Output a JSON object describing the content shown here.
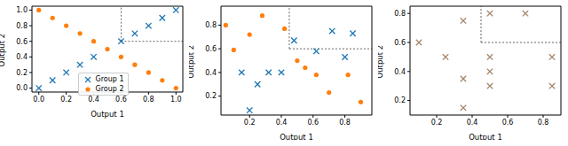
{
  "chart_data": [
    {
      "type": "scatter",
      "xlabel": "Output 1",
      "ylabel": "Output 2",
      "xlim": [
        -0.05,
        1.05
      ],
      "ylim": [
        -0.05,
        1.05
      ],
      "xticks": [
        {
          "value": 0,
          "label": "0.0"
        },
        0.2,
        0.4,
        0.6,
        0.8,
        {
          "value": 1,
          "label": "1.0"
        }
      ],
      "yticks": [
        {
          "value": 0,
          "label": "0.0"
        },
        0.2,
        0.4,
        0.6,
        0.8,
        {
          "value": 1,
          "label": "1.0"
        }
      ],
      "threshold": {
        "x": 0.6,
        "y": 0.6
      },
      "legend": "lower center",
      "series": [
        {
          "name": "Group 1",
          "color": "#1f77b4",
          "marker": "x",
          "x": [
            0,
            0.1,
            0.2,
            0.3,
            0.4,
            0.6,
            0.7,
            0.8,
            0.9,
            1.0
          ],
          "y": [
            0,
            0.1,
            0.2,
            0.3,
            0.4,
            0.6,
            0.7,
            0.8,
            0.9,
            1.0
          ]
        },
        {
          "name": "Group 2",
          "color": "#ff7f0e",
          "marker": "o",
          "x": [
            0,
            0.1,
            0.2,
            0.3,
            0.4,
            0.5,
            0.6,
            0.7,
            0.8,
            0.9,
            1.0
          ],
          "y": [
            1.0,
            0.9,
            0.8,
            0.7,
            0.6,
            0.5,
            0.4,
            0.3,
            0.2,
            0.1,
            0
          ]
        }
      ]
    },
    {
      "type": "scatter",
      "xlabel": "Output 1",
      "ylabel": "Output 2",
      "xlim": [
        0.02,
        0.97
      ],
      "ylim": [
        0.04,
        0.96
      ],
      "xticks": [
        0.2,
        0.4,
        0.6,
        0.8
      ],
      "yticks": [
        0.2,
        0.4,
        0.6,
        0.8
      ],
      "threshold": {
        "x": 0.45,
        "y": 0.6
      },
      "series": [
        {
          "name": "Group 1",
          "color": "#1f77b4",
          "marker": "x",
          "x": [
            0.15,
            0.2,
            0.25,
            0.32,
            0.4,
            0.48,
            0.62,
            0.72,
            0.8,
            0.85
          ],
          "y": [
            0.4,
            0.08,
            0.3,
            0.4,
            0.4,
            0.67,
            0.58,
            0.75,
            0.53,
            0.73
          ]
        },
        {
          "name": "Group 2",
          "color": "#ff7f0e",
          "marker": "o",
          "x": [
            0.05,
            0.1,
            0.2,
            0.28,
            0.42,
            0.5,
            0.55,
            0.62,
            0.7,
            0.82,
            0.9
          ],
          "y": [
            0.8,
            0.59,
            0.72,
            0.88,
            0.77,
            0.5,
            0.44,
            0.38,
            0.23,
            0.38,
            0.15
          ]
        }
      ]
    },
    {
      "type": "scatter",
      "xlabel": "Output 1",
      "ylabel": "Output 2",
      "xlim": [
        0.05,
        0.9
      ],
      "ylim": [
        0.1,
        0.85
      ],
      "xticks": [
        0.2,
        0.4,
        0.6,
        0.8
      ],
      "yticks": [
        0.2,
        0.4,
        0.6,
        0.8
      ],
      "threshold": {
        "x": 0.45,
        "y": 0.6
      },
      "series": [
        {
          "color": "#a5866a",
          "marker": "x",
          "x": [
            0.1,
            0.25,
            0.35,
            0.35,
            0.35,
            0.5,
            0.5,
            0.5,
            0.5,
            0.7,
            0.85,
            0.85
          ],
          "y": [
            0.6,
            0.5,
            0.75,
            0.15,
            0.35,
            0.8,
            0.5,
            0.4,
            0.3,
            0.8,
            0.5,
            0.3
          ]
        }
      ]
    }
  ]
}
